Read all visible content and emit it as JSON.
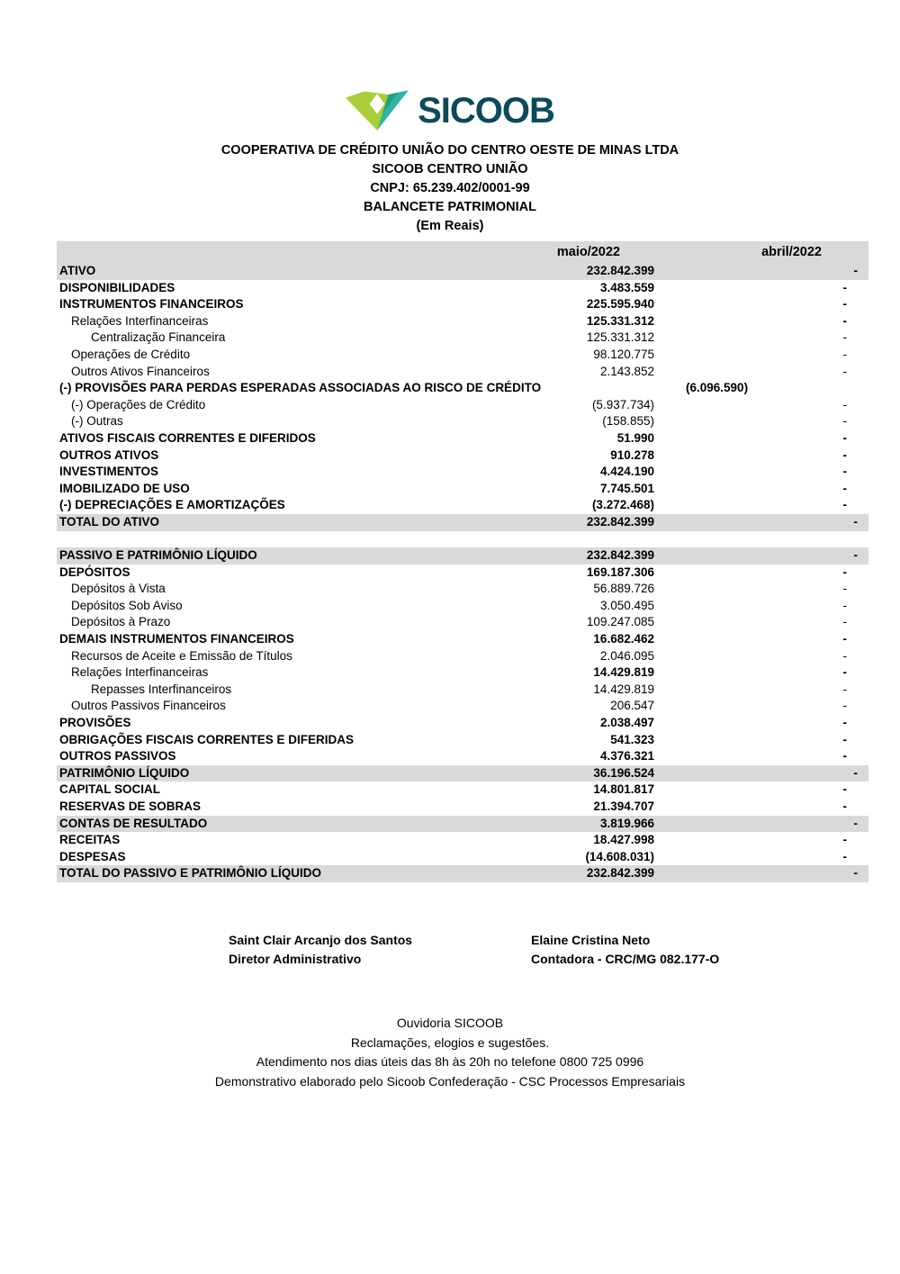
{
  "brand": {
    "name": "SICOOB",
    "wordmark_color": "#0b4a59",
    "icon": {
      "lime": "#a9ce3a",
      "lime_dark": "#8cbe37",
      "lime_bottom": "#a5cf2e",
      "teal": "#2fb3a6",
      "teal_dark": "#22a07f",
      "diamond": "#ffffff"
    }
  },
  "header": {
    "company": "COOPERATIVA DE CRÉDITO UNIÃO DO CENTRO OESTE DE MINAS LTDA",
    "trade_name": "SICOOB CENTRO UNIÃO",
    "cnpj": "CNPJ: 65.239.402/0001-99",
    "report_title": "BALANCETE PATRIMONIAL",
    "unit_note": "(Em Reais)"
  },
  "table": {
    "band_color": "#d9d9d9",
    "columns": {
      "current": "maio/2022",
      "previous": "abril/2022"
    },
    "sections": [
      {
        "name": "ativo",
        "rows": [
          {
            "label": "ATIVO",
            "maio": "232.842.399",
            "abril": "-",
            "indent": 0,
            "bold": true,
            "value_bold": true,
            "gray": true
          },
          {
            "label": "DISPONIBILIDADES",
            "maio": "3.483.559",
            "abril": "-",
            "indent": 0,
            "bold": true,
            "value_bold": true,
            "gray": false
          },
          {
            "label": "INSTRUMENTOS FINANCEIROS",
            "maio": "225.595.940",
            "abril": "-",
            "indent": 0,
            "bold": true,
            "value_bold": true,
            "gray": false
          },
          {
            "label": "Relações Interfinanceiras",
            "maio": "125.331.312",
            "abril": "-",
            "indent": 1,
            "bold": false,
            "value_bold": true,
            "gray": false
          },
          {
            "label": "Centralização Financeira",
            "maio": "125.331.312",
            "abril": "-",
            "indent": 2,
            "bold": false,
            "value_bold": false,
            "gray": false
          },
          {
            "label": "Operações de Crédito",
            "maio": "98.120.775",
            "abril": "-",
            "indent": 1,
            "bold": false,
            "value_bold": false,
            "gray": false
          },
          {
            "label": "Outros Ativos Financeiros",
            "maio": "2.143.852",
            "abril": "-",
            "indent": 1,
            "bold": false,
            "value_bold": false,
            "gray": false
          },
          {
            "label": "(-) PROVISÕES PARA PERDAS ESPERADAS ASSOCIADAS AO RISCO DE CRÉDITO",
            "maio": "(6.096.590)",
            "abril": "-",
            "indent": 0,
            "bold": true,
            "value_bold": true,
            "gray": false
          },
          {
            "label": "(-) Operações de Crédito",
            "maio": "(5.937.734)",
            "abril": "-",
            "indent": 1,
            "bold": false,
            "value_bold": false,
            "gray": false
          },
          {
            "label": "(-) Outras",
            "maio": "(158.855)",
            "abril": "-",
            "indent": 1,
            "bold": false,
            "value_bold": false,
            "gray": false
          },
          {
            "label": "ATIVOS FISCAIS CORRENTES E DIFERIDOS",
            "maio": "51.990",
            "abril": "-",
            "indent": 0,
            "bold": true,
            "value_bold": true,
            "gray": false
          },
          {
            "label": "OUTROS ATIVOS",
            "maio": "910.278",
            "abril": "-",
            "indent": 0,
            "bold": true,
            "value_bold": true,
            "gray": false
          },
          {
            "label": "INVESTIMENTOS",
            "maio": "4.424.190",
            "abril": "-",
            "indent": 0,
            "bold": true,
            "value_bold": true,
            "gray": false
          },
          {
            "label": "IMOBILIZADO DE USO",
            "maio": "7.745.501",
            "abril": "-",
            "indent": 0,
            "bold": true,
            "value_bold": true,
            "gray": false
          },
          {
            "label": "(-) DEPRECIAÇÕES E AMORTIZAÇÕES",
            "maio": "(3.272.468)",
            "abril": "-",
            "indent": 0,
            "bold": true,
            "value_bold": true,
            "gray": false
          },
          {
            "label": "TOTAL DO ATIVO",
            "maio": "232.842.399",
            "abril": "-",
            "indent": 0,
            "bold": true,
            "value_bold": true,
            "gray": true
          }
        ]
      },
      {
        "name": "passivo",
        "rows": [
          {
            "label": "PASSIVO E PATRIMÔNIO LÍQUIDO",
            "maio": "232.842.399",
            "abril": "-",
            "indent": 0,
            "bold": true,
            "value_bold": true,
            "gray": true
          },
          {
            "label": "DEPÓSITOS",
            "maio": "169.187.306",
            "abril": "-",
            "indent": 0,
            "bold": true,
            "value_bold": true,
            "gray": false
          },
          {
            "label": "Depósitos à Vista",
            "maio": "56.889.726",
            "abril": "-",
            "indent": 1,
            "bold": false,
            "value_bold": false,
            "gray": false
          },
          {
            "label": "Depósitos Sob Aviso",
            "maio": "3.050.495",
            "abril": "-",
            "indent": 1,
            "bold": false,
            "value_bold": false,
            "gray": false
          },
          {
            "label": "Depósitos à Prazo",
            "maio": "109.247.085",
            "abril": "-",
            "indent": 1,
            "bold": false,
            "value_bold": false,
            "gray": false
          },
          {
            "label": "DEMAIS INSTRUMENTOS FINANCEIROS",
            "maio": "16.682.462",
            "abril": "-",
            "indent": 0,
            "bold": true,
            "value_bold": true,
            "gray": false
          },
          {
            "label": "Recursos de Aceite e Emissão de Títulos",
            "maio": "2.046.095",
            "abril": "-",
            "indent": 1,
            "bold": false,
            "value_bold": false,
            "gray": false
          },
          {
            "label": "Relações Interfinanceiras",
            "maio": "14.429.819",
            "abril": "-",
            "indent": 1,
            "bold": false,
            "value_bold": true,
            "gray": false
          },
          {
            "label": "Repasses Interfinanceiros",
            "maio": "14.429.819",
            "abril": "-",
            "indent": 2,
            "bold": false,
            "value_bold": false,
            "gray": false
          },
          {
            "label": "Outros Passivos Financeiros",
            "maio": "206.547",
            "abril": "-",
            "indent": 1,
            "bold": false,
            "value_bold": false,
            "gray": false
          },
          {
            "label": "PROVISÕES",
            "maio": "2.038.497",
            "abril": "-",
            "indent": 0,
            "bold": true,
            "value_bold": true,
            "gray": false
          },
          {
            "label": "OBRIGAÇÕES FISCAIS CORRENTES E DIFERIDAS",
            "maio": "541.323",
            "abril": "-",
            "indent": 0,
            "bold": true,
            "value_bold": true,
            "gray": false
          },
          {
            "label": "OUTROS PASSIVOS",
            "maio": "4.376.321",
            "abril": "-",
            "indent": 0,
            "bold": true,
            "value_bold": true,
            "gray": false
          },
          {
            "label": "PATRIMÔNIO LÍQUIDO",
            "maio": "36.196.524",
            "abril": "-",
            "indent": 0,
            "bold": true,
            "value_bold": true,
            "gray": true
          },
          {
            "label": "CAPITAL SOCIAL",
            "maio": "14.801.817",
            "abril": "-",
            "indent": 0,
            "bold": true,
            "value_bold": true,
            "gray": false
          },
          {
            "label": "RESERVAS DE SOBRAS",
            "maio": "21.394.707",
            "abril": "-",
            "indent": 0,
            "bold": true,
            "value_bold": true,
            "gray": false
          },
          {
            "label": "CONTAS DE RESULTADO",
            "maio": "3.819.966",
            "abril": "-",
            "indent": 0,
            "bold": true,
            "value_bold": true,
            "gray": true
          },
          {
            "label": "RECEITAS",
            "maio": "18.427.998",
            "abril": "-",
            "indent": 0,
            "bold": true,
            "value_bold": true,
            "gray": false
          },
          {
            "label": "DESPESAS",
            "maio": "(14.608.031)",
            "abril": "-",
            "indent": 0,
            "bold": true,
            "value_bold": true,
            "gray": false
          },
          {
            "label": "TOTAL DO PASSIVO E PATRIMÔNIO LÍQUIDO",
            "maio": "232.842.399",
            "abril": "-",
            "indent": 0,
            "bold": true,
            "value_bold": true,
            "gray": true
          }
        ]
      }
    ]
  },
  "signatures": [
    {
      "name": "Saint Clair Arcanjo dos Santos",
      "role": "Diretor Administrativo"
    },
    {
      "name": "Elaine Cristina Neto",
      "role": "Contadora - CRC/MG 082.177-O"
    }
  ],
  "footer_lines": [
    "Ouvidoria SICOOB",
    "Reclamações, elogios e sugestões.",
    "Atendimento nos dias úteis das 8h às 20h no telefone 0800 725 0996",
    "Demonstrativo elaborado pelo Sicoob Confederação - CSC Processos Empresariais"
  ]
}
